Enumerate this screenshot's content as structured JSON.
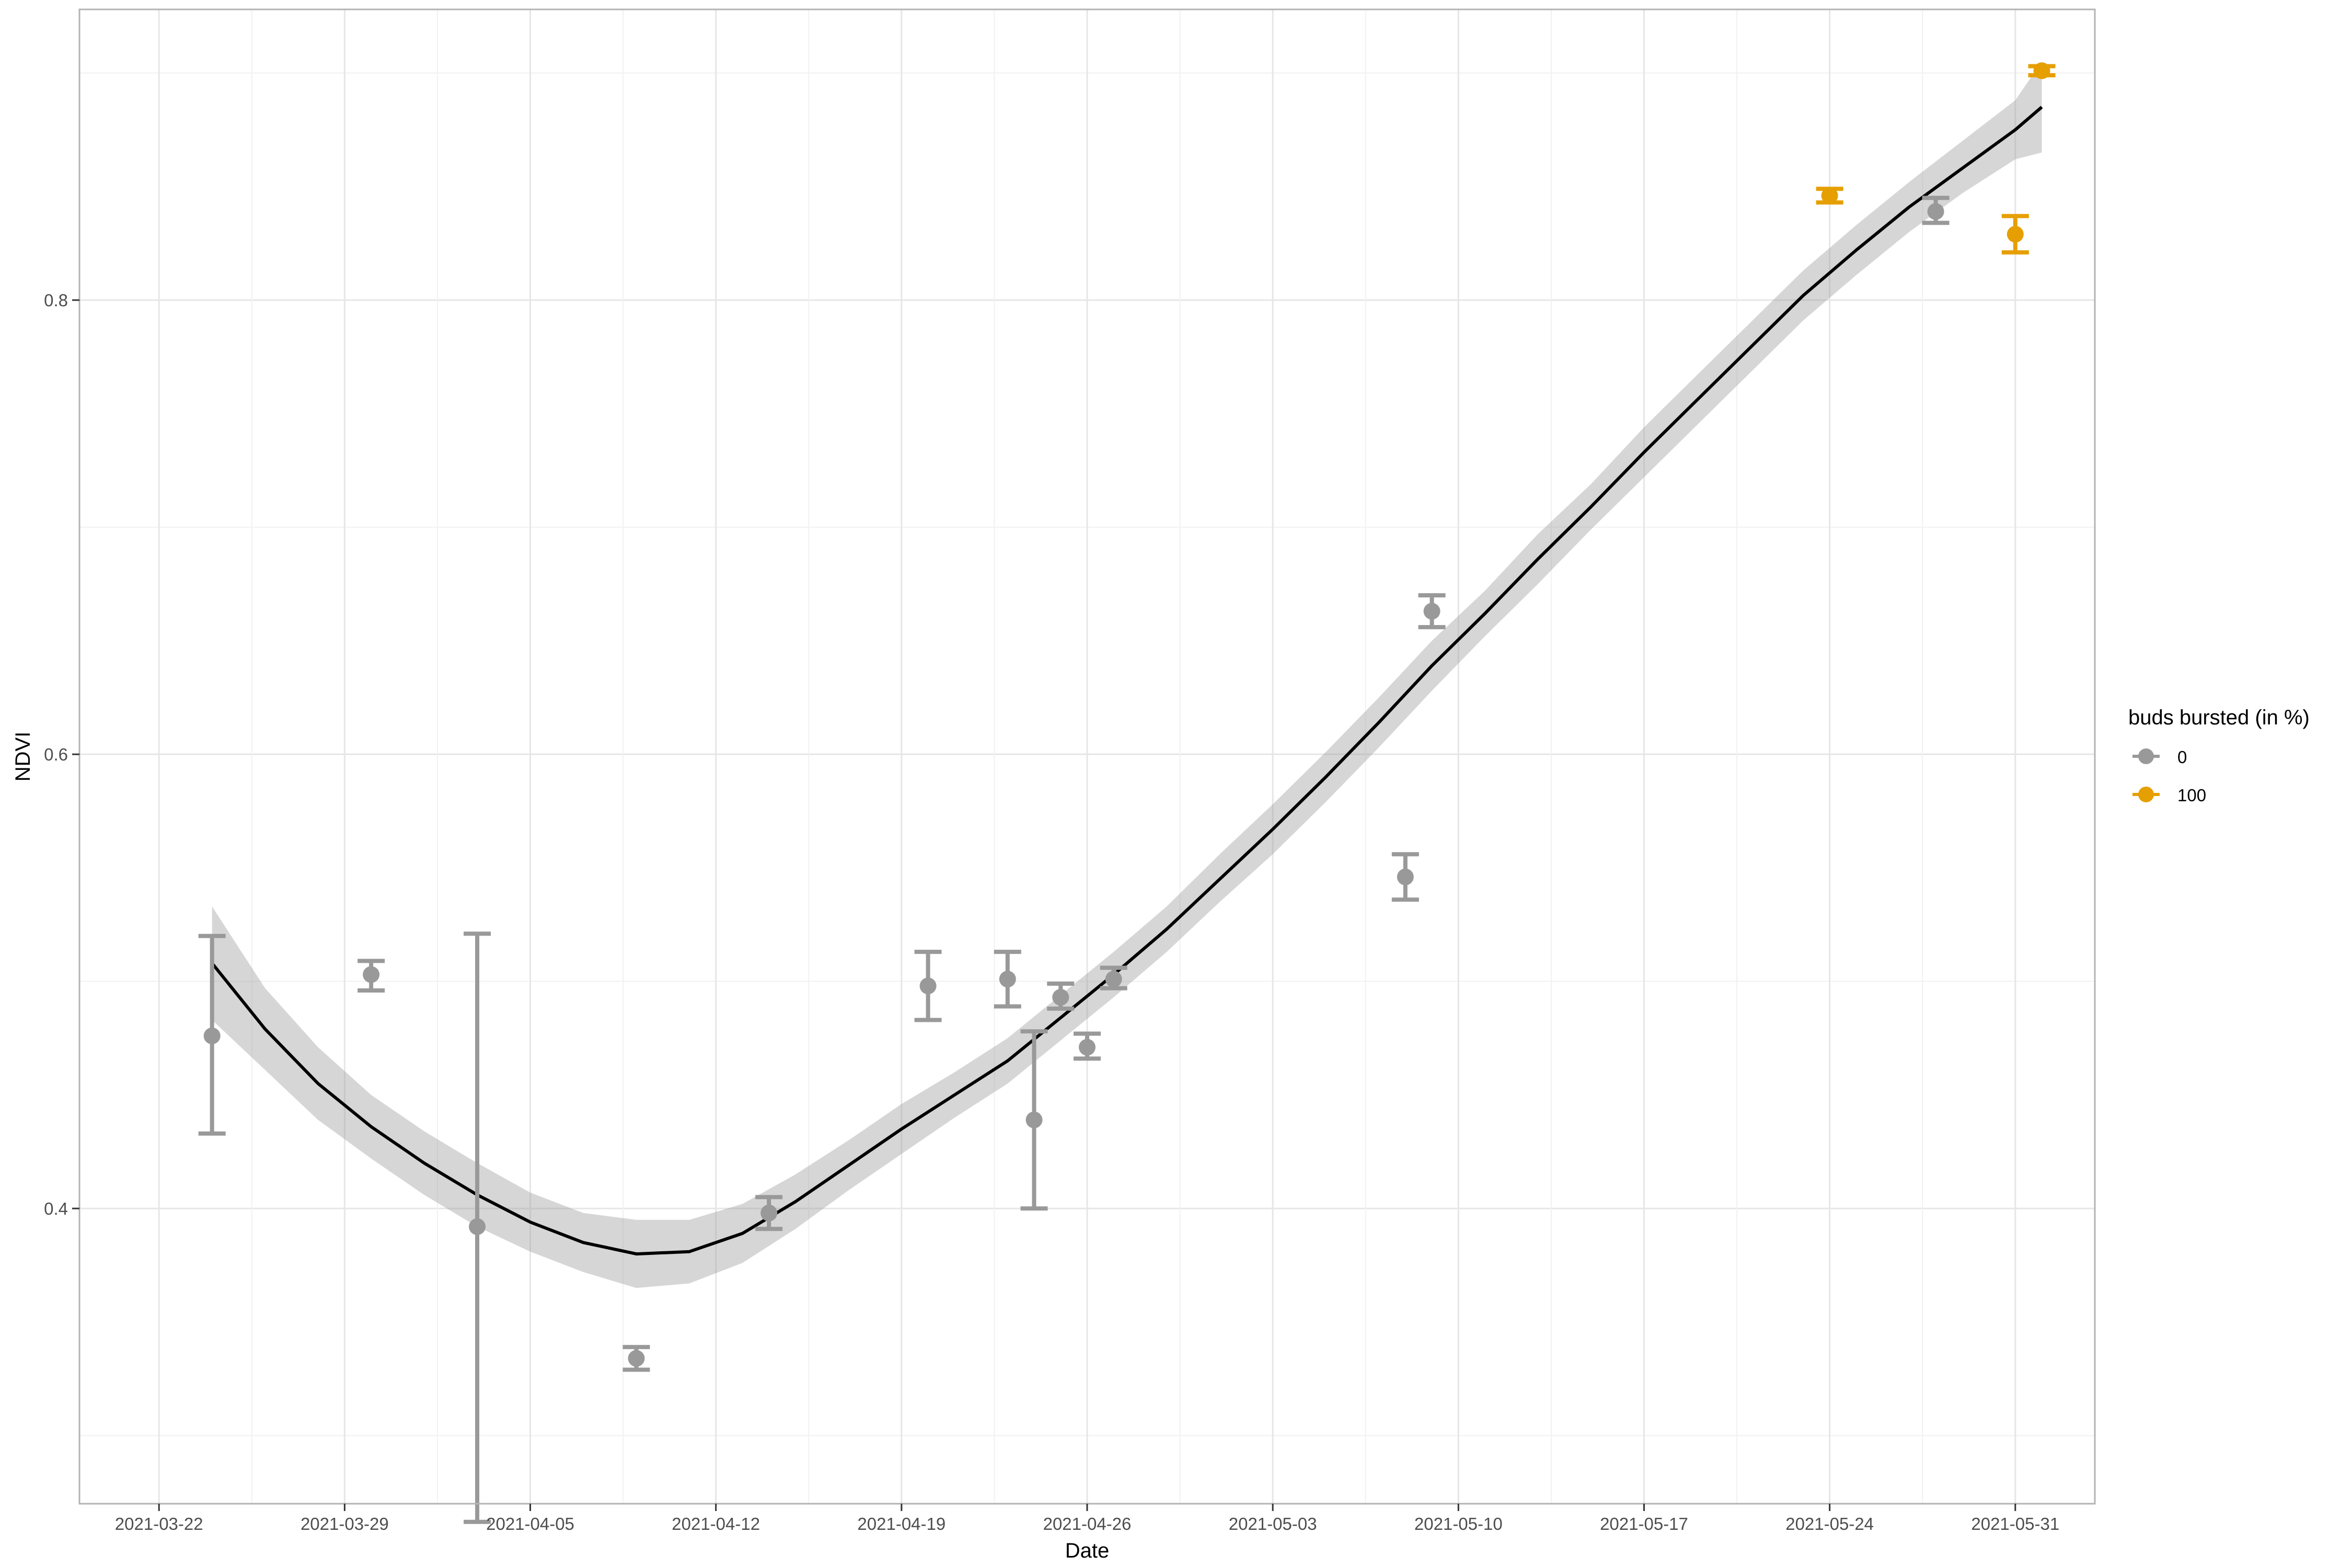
{
  "chart_data": {
    "type": "scatter",
    "title": "",
    "xlabel": "Date",
    "ylabel": "NDVI",
    "x_range": [
      "2021-03-19",
      "2021-06-03"
    ],
    "ylim": [
      0.27,
      0.928
    ],
    "x_ticks": [
      "2021-03-22",
      "2021-03-29",
      "2021-04-05",
      "2021-04-12",
      "2021-04-19",
      "2021-04-26",
      "2021-05-03",
      "2021-05-10",
      "2021-05-17",
      "2021-05-24",
      "2021-05-31"
    ],
    "y_ticks": [
      0.4,
      0.6,
      0.8
    ],
    "y_tick_labels": [
      "0.4",
      "0.6",
      "0.8"
    ],
    "grid": true,
    "legend": {
      "title": "buds bursted (in %)",
      "position": "right",
      "entries": [
        {
          "label": "0",
          "color": "#999999"
        },
        {
          "label": "100",
          "color": "#E69F00"
        }
      ]
    },
    "series": [
      {
        "name": "0",
        "color": "#999999",
        "points": [
          {
            "x": "2021-03-24",
            "y": 0.476,
            "ymin": 0.433,
            "ymax": 0.52
          },
          {
            "x": "2021-03-30",
            "y": 0.503,
            "ymin": 0.496,
            "ymax": 0.509
          },
          {
            "x": "2021-04-03",
            "y": 0.392,
            "ymin": 0.262,
            "ymax": 0.521
          },
          {
            "x": "2021-04-09",
            "y": 0.334,
            "ymin": 0.329,
            "ymax": 0.339
          },
          {
            "x": "2021-04-14",
            "y": 0.398,
            "ymin": 0.391,
            "ymax": 0.405
          },
          {
            "x": "2021-04-20",
            "y": 0.498,
            "ymin": 0.483,
            "ymax": 0.513
          },
          {
            "x": "2021-04-23",
            "y": 0.501,
            "ymin": 0.489,
            "ymax": 0.513
          },
          {
            "x": "2021-04-24",
            "y": 0.439,
            "ymin": 0.4,
            "ymax": 0.478
          },
          {
            "x": "2021-04-25",
            "y": 0.493,
            "ymin": 0.488,
            "ymax": 0.499
          },
          {
            "x": "2021-04-26",
            "y": 0.471,
            "ymin": 0.466,
            "ymax": 0.477
          },
          {
            "x": "2021-04-27",
            "y": 0.501,
            "ymin": 0.497,
            "ymax": 0.506
          },
          {
            "x": "2021-05-08",
            "y": 0.546,
            "ymin": 0.536,
            "ymax": 0.556
          },
          {
            "x": "2021-05-09",
            "y": 0.663,
            "ymin": 0.656,
            "ymax": 0.67
          },
          {
            "x": "2021-05-28",
            "y": 0.839,
            "ymin": 0.834,
            "ymax": 0.845
          }
        ]
      },
      {
        "name": "100",
        "color": "#E69F00",
        "points": [
          {
            "x": "2021-05-24",
            "y": 0.846,
            "ymin": 0.843,
            "ymax": 0.849
          },
          {
            "x": "2021-05-31",
            "y": 0.829,
            "ymin": 0.821,
            "ymax": 0.837
          },
          {
            "x": "2021-06-01",
            "y": 0.901,
            "ymin": 0.899,
            "ymax": 0.903
          }
        ]
      }
    ],
    "smooth": {
      "color": "#000000",
      "band_color": "#999999",
      "x": [
        "2021-03-24",
        "2021-03-26",
        "2021-03-28",
        "2021-03-30",
        "2021-04-01",
        "2021-04-03",
        "2021-04-05",
        "2021-04-07",
        "2021-04-09",
        "2021-04-11",
        "2021-04-13",
        "2021-04-15",
        "2021-04-17",
        "2021-04-19",
        "2021-04-21",
        "2021-04-23",
        "2021-04-25",
        "2021-04-27",
        "2021-04-29",
        "2021-05-01",
        "2021-05-03",
        "2021-05-05",
        "2021-05-07",
        "2021-05-09",
        "2021-05-11",
        "2021-05-13",
        "2021-05-15",
        "2021-05-17",
        "2021-05-19",
        "2021-05-21",
        "2021-05-23",
        "2021-05-25",
        "2021-05-27",
        "2021-05-29",
        "2021-05-31",
        "2021-06-01"
      ],
      "y": [
        0.508,
        0.479,
        0.455,
        0.436,
        0.42,
        0.406,
        0.394,
        0.385,
        0.38,
        0.381,
        0.389,
        0.403,
        0.419,
        0.435,
        0.45,
        0.465,
        0.484,
        0.503,
        0.523,
        0.545,
        0.567,
        0.59,
        0.614,
        0.639,
        0.662,
        0.686,
        0.709,
        0.733,
        0.756,
        0.779,
        0.802,
        0.822,
        0.841,
        0.858,
        0.875,
        0.885
      ],
      "ymin": [
        0.483,
        0.461,
        0.439,
        0.422,
        0.406,
        0.392,
        0.381,
        0.372,
        0.365,
        0.367,
        0.376,
        0.391,
        0.408,
        0.424,
        0.44,
        0.455,
        0.474,
        0.493,
        0.513,
        0.535,
        0.556,
        0.579,
        0.603,
        0.628,
        0.652,
        0.675,
        0.699,
        0.722,
        0.745,
        0.768,
        0.791,
        0.811,
        0.83,
        0.847,
        0.862,
        0.865
      ],
      "ymax": [
        0.533,
        0.497,
        0.471,
        0.45,
        0.434,
        0.42,
        0.407,
        0.398,
        0.395,
        0.395,
        0.402,
        0.415,
        0.43,
        0.446,
        0.46,
        0.475,
        0.494,
        0.513,
        0.533,
        0.556,
        0.578,
        0.601,
        0.625,
        0.65,
        0.672,
        0.697,
        0.719,
        0.744,
        0.767,
        0.79,
        0.813,
        0.833,
        0.852,
        0.87,
        0.888,
        0.905
      ]
    }
  }
}
